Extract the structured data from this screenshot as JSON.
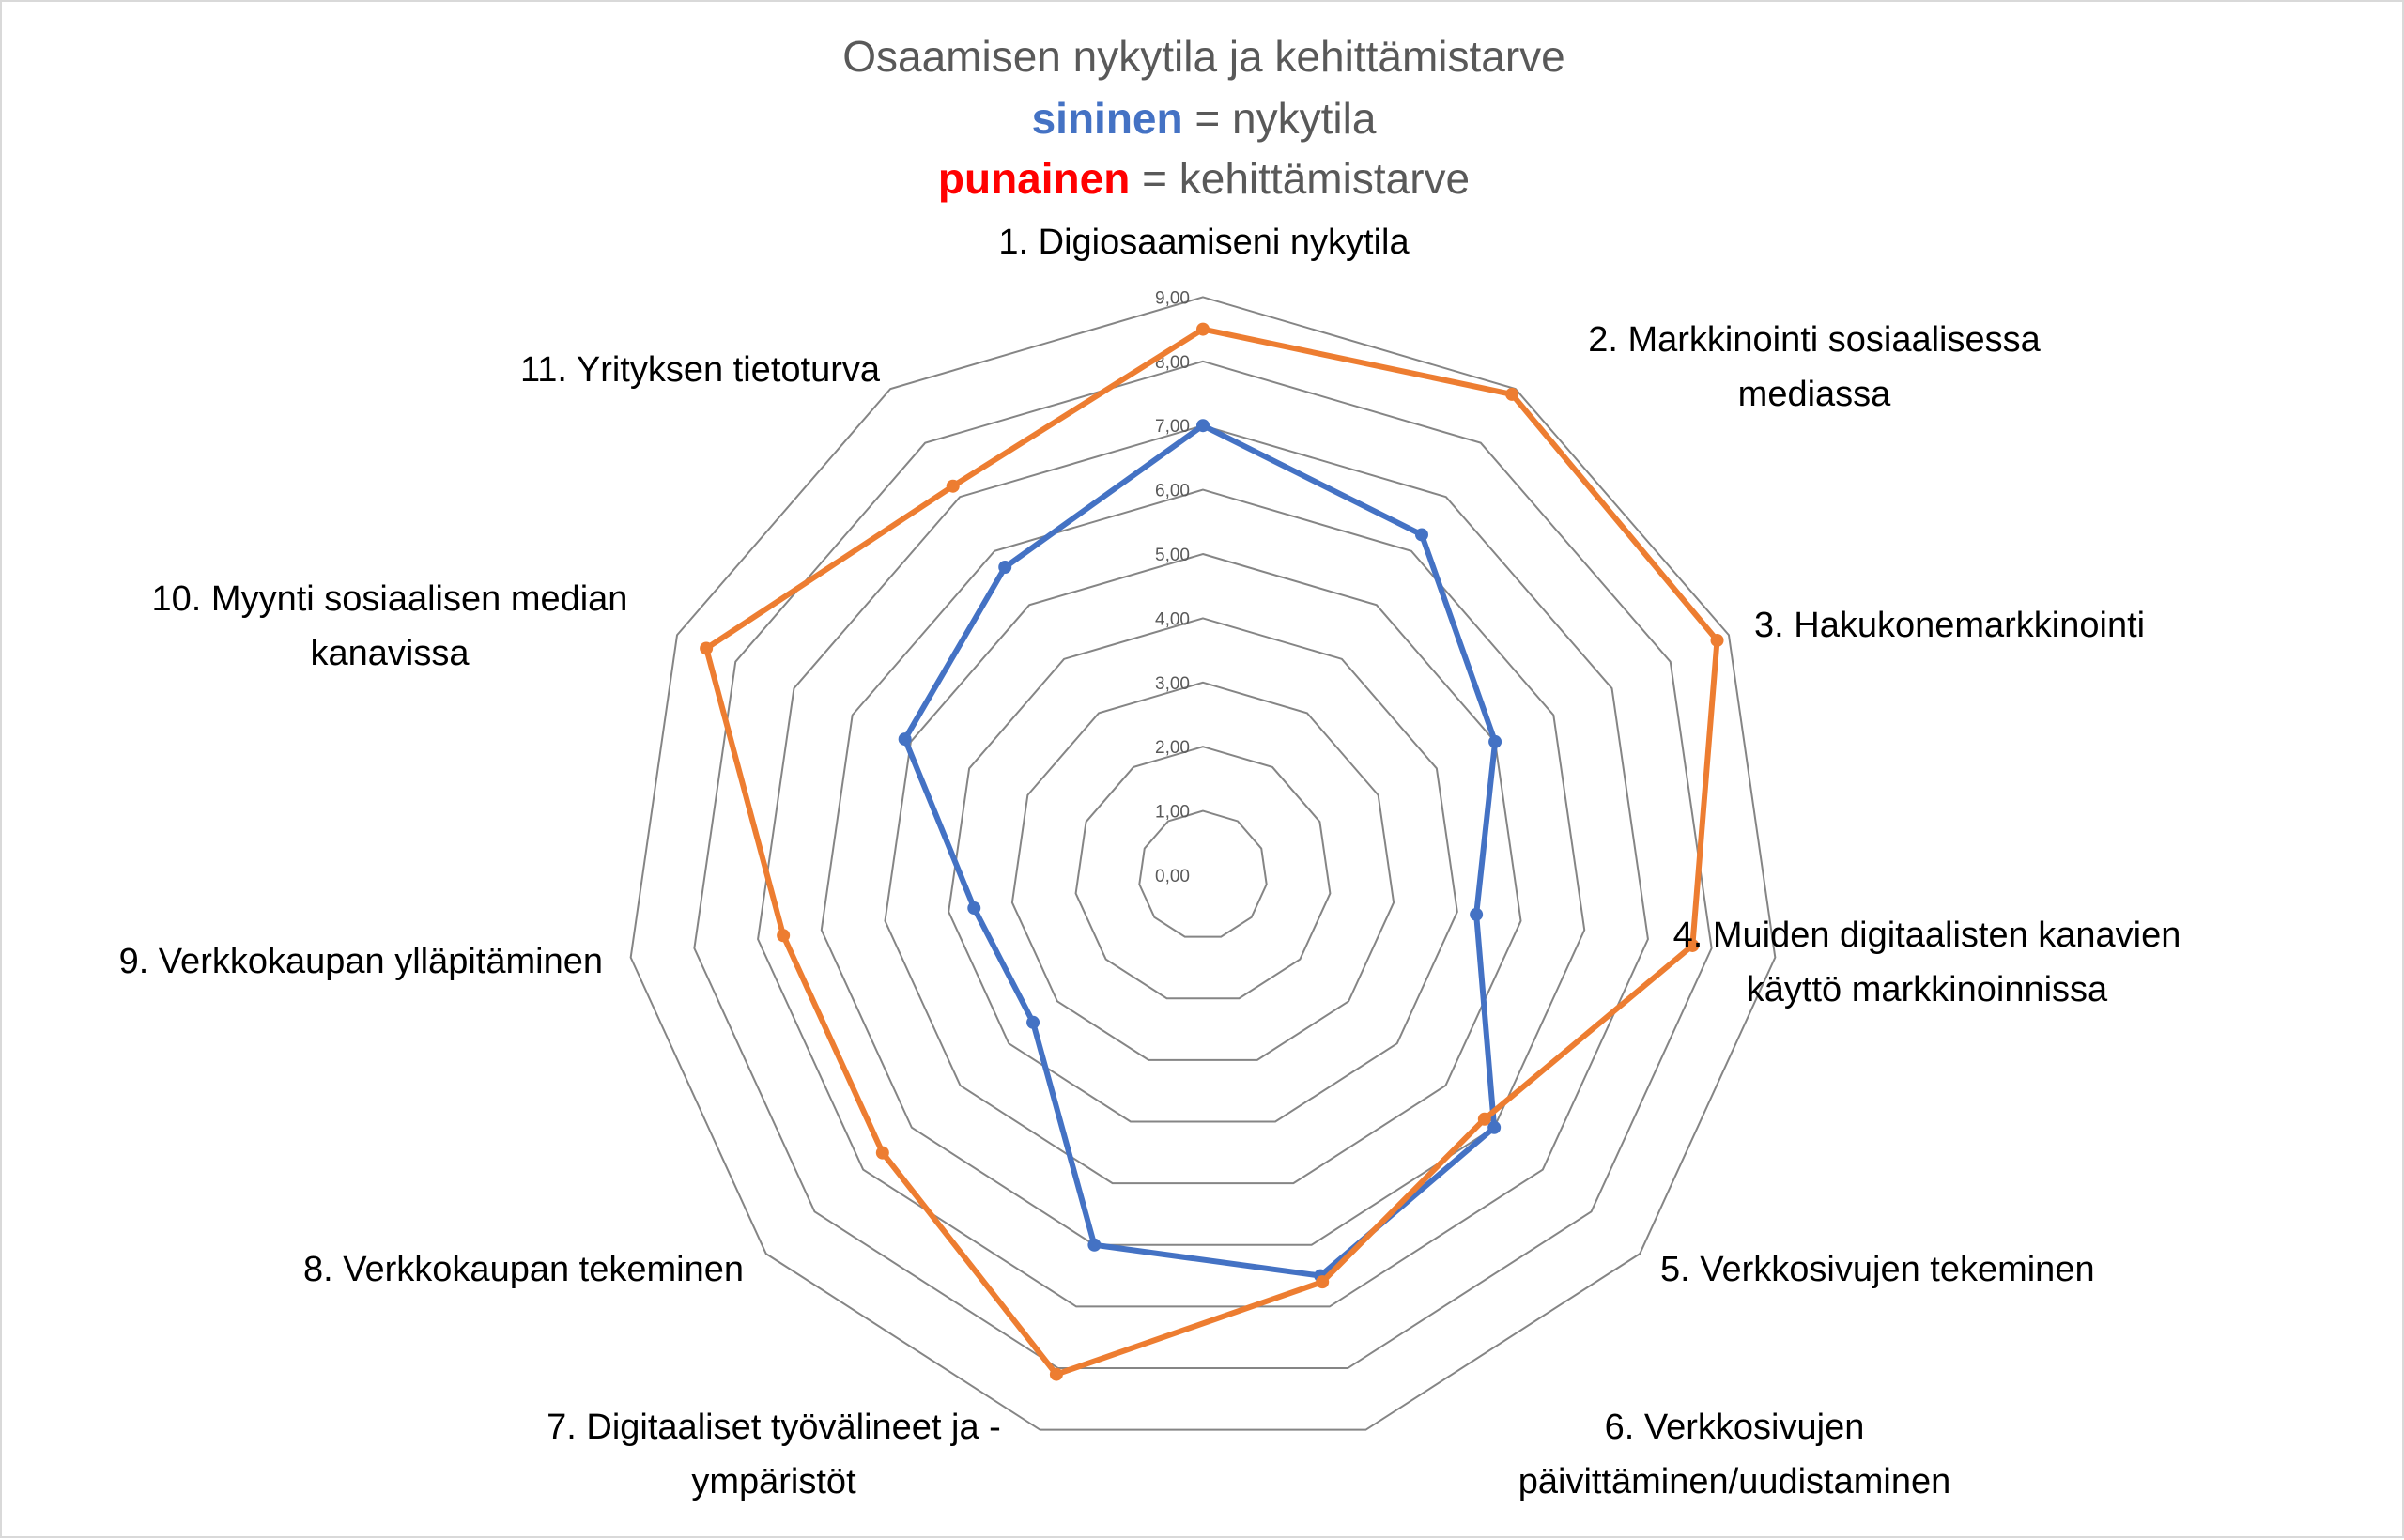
{
  "chart_data": {
    "type": "radar",
    "title": "Osaamisen nykytila ja kehittämistarve",
    "subtitle_lines": [
      {
        "highlight": "sininen",
        "highlight_color": "#4472C4",
        "rest": " = nykytila"
      },
      {
        "highlight": "punainen",
        "highlight_color": "#FF0000",
        "rest": " = kehittämistarve"
      }
    ],
    "categories": [
      "1. Digiosaamiseni nykytila",
      "2. Markkinointi sosiaalisessa mediassa",
      "3. Hakukonemarkkinointi",
      "4. Muiden digitaalisten kanavien käyttö markkinoinnissa",
      "5. Verkkosivujen tekeminen",
      "6. Verkkosivujen päivittäminen/uudistaminen",
      "7. Digitaaliset työvälineet ja -ympäristöt",
      "8. Verkkokaupan tekeminen",
      "9. Verkkokaupan ylläpitäminen",
      "10. Myynti sosiaalisen median kanavissa",
      "11. Yrityksen tietoturva"
    ],
    "series": [
      {
        "name": "nykytila",
        "color": "#4472C4",
        "values": [
          7.0,
          6.3,
          5.0,
          4.3,
          6.0,
          6.5,
          6.0,
          3.5,
          3.6,
          5.1,
          5.7
        ]
      },
      {
        "name": "kehittämistarve",
        "color": "#ED7D31",
        "values": [
          8.5,
          8.9,
          8.8,
          7.7,
          5.8,
          6.6,
          8.1,
          6.6,
          6.6,
          8.5,
          7.2
        ]
      }
    ],
    "rlim": [
      0,
      9
    ],
    "ticks": [
      "0,00",
      "1,00",
      "2,00",
      "3,00",
      "4,00",
      "5,00",
      "6,00",
      "7,00",
      "8,00",
      "9,00"
    ],
    "grid": true,
    "legend": "in title"
  },
  "labels": [
    {
      "lines": [
        "1. Digiosaamiseni nykytila"
      ]
    },
    {
      "lines": [
        "2. Markkinointi sosiaalisessa",
        "mediassa"
      ]
    },
    {
      "lines": [
        "3. Hakukonemarkkinointi"
      ]
    },
    {
      "lines": [
        "4. Muiden digitaalisten kanavien",
        "käyttö markkinoinnissa"
      ]
    },
    {
      "lines": [
        "5. Verkkosivujen tekeminen"
      ]
    },
    {
      "lines": [
        "6. Verkkosivujen",
        "päivittäminen/uudistaminen"
      ]
    },
    {
      "lines": [
        "7. Digitaaliset työvälineet ja -",
        "ympäristöt"
      ]
    },
    {
      "lines": [
        "8. Verkkokaupan tekeminen"
      ]
    },
    {
      "lines": [
        "9. Verkkokaupan ylläpitäminen"
      ]
    },
    {
      "lines": [
        "10. Myynti sosiaalisen median",
        "kanavissa"
      ]
    },
    {
      "lines": [
        "11. Yrityksen tietoturva"
      ]
    }
  ]
}
